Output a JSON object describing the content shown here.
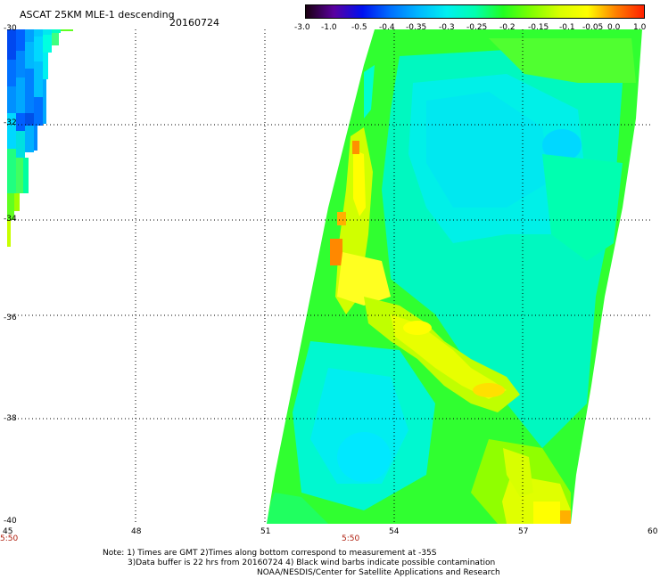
{
  "header": {
    "title": "ASCAT 25KM MLE-1 descending",
    "date": "20160724"
  },
  "colorbar": {
    "labels": [
      "-3.0",
      "-1.0",
      "-0.5",
      "-0.4",
      "-0.35",
      "-0.3",
      "-0.25",
      "-0.2",
      "-0.15",
      "-0.1",
      "-0.05",
      "0.0",
      "1.0"
    ],
    "colors": [
      "#1a0010",
      "#5a00a0",
      "#0010f0",
      "#0070ff",
      "#00b8ff",
      "#00f0f0",
      "#00ffb0",
      "#20ff20",
      "#80ff00",
      "#d8ff00",
      "#ffff00",
      "#ff8000",
      "#ff2000"
    ]
  },
  "map": {
    "lat_labels": [
      "-30",
      "-32",
      "-34",
      "-36",
      "-38",
      "-40"
    ],
    "lon_labels": [
      "45",
      "48",
      "51",
      "54",
      "57",
      "60"
    ],
    "time_labels": [
      "5:50",
      "5:50"
    ],
    "lat_range": [
      -40,
      -30
    ],
    "lon_range": [
      45,
      60
    ]
  },
  "notes": [
    "Note: 1) Times are GMT 2)Times along bottom correspond to measurement at -35S",
    "3)Data buffer is 22 hrs from 20160724 4) Black wind barbs indicate possible contamination",
    "NOAA/NESDIS/Center for Satellite Applications and Research"
  ]
}
